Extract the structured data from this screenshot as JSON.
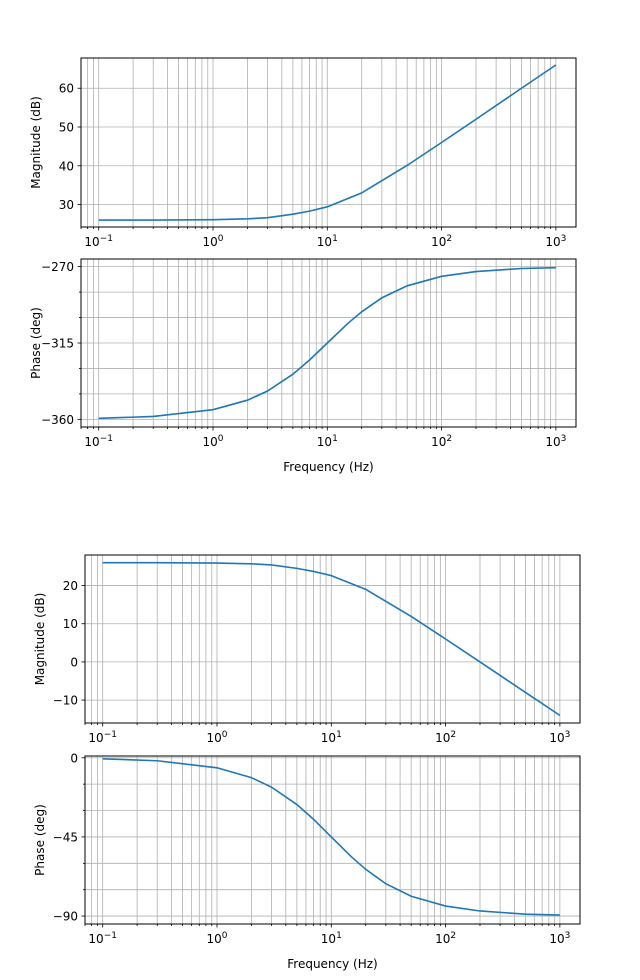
{
  "chart_data": [
    {
      "type": "line",
      "xscale": "log",
      "xlim": [
        0.07,
        1500
      ],
      "xticks": [
        0.1,
        1,
        10,
        100,
        1000
      ],
      "xticklabels": [
        [
          "10",
          "−1"
        ],
        [
          "10",
          "0"
        ],
        [
          "10",
          "1"
        ],
        [
          "10",
          "2"
        ],
        [
          "10",
          "3"
        ]
      ],
      "ylabel": "Magnitude (dB)",
      "xlabel": "",
      "ylim": [
        24.2,
        67.8
      ],
      "yticks": [
        30,
        40,
        50,
        60
      ],
      "yticklabels": [
        "30",
        "40",
        "50",
        "60"
      ],
      "grid": true,
      "series": [
        {
          "name": "magnitude",
          "color": "#1f77b4",
          "x": [
            0.1,
            0.3,
            1,
            2,
            3,
            5,
            7,
            10,
            20,
            50,
            100,
            200,
            500,
            1000
          ],
          "y": [
            26.0,
            26.0,
            26.1,
            26.3,
            26.6,
            27.5,
            28.3,
            29.4,
            33.0,
            40.1,
            46.0,
            52.0,
            60.0,
            66.0
          ]
        }
      ]
    },
    {
      "type": "line",
      "xscale": "log",
      "xlim": [
        0.07,
        1500
      ],
      "xticks": [
        0.1,
        1,
        10,
        100,
        1000
      ],
      "xticklabels": [
        [
          "10",
          "−1"
        ],
        [
          "10",
          "0"
        ],
        [
          "10",
          "1"
        ],
        [
          "10",
          "2"
        ],
        [
          "10",
          "3"
        ]
      ],
      "ylabel": "Phase (deg)",
      "xlabel": "Frequency (Hz)",
      "ylim": [
        -364.5,
        -265.5
      ],
      "yticks": [
        -360,
        -315,
        -270
      ],
      "yticklabels": [
        "−360",
        "−315",
        "−270"
      ],
      "minor_yticks": [
        -345,
        -330,
        -300,
        -285
      ],
      "grid": true,
      "series": [
        {
          "name": "phase",
          "color": "#1f77b4",
          "x": [
            0.1,
            0.3,
            1,
            2,
            3,
            5,
            7,
            10,
            15,
            20,
            30,
            50,
            100,
            200,
            500,
            1000
          ],
          "y": [
            -359.4,
            -358.3,
            -354.3,
            -348.7,
            -343.3,
            -333.4,
            -325.0,
            -315.0,
            -303.7,
            -296.6,
            -288.4,
            -281.3,
            -275.7,
            -272.9,
            -271.1,
            -270.6
          ]
        }
      ]
    },
    {
      "type": "line",
      "xscale": "log",
      "xlim": [
        0.07,
        1500
      ],
      "xticks": [
        0.1,
        1,
        10,
        100,
        1000
      ],
      "xticklabels": [
        [
          "10",
          "−1"
        ],
        [
          "10",
          "0"
        ],
        [
          "10",
          "1"
        ],
        [
          "10",
          "2"
        ],
        [
          "10",
          "3"
        ]
      ],
      "ylabel": "Magnitude (dB)",
      "xlabel": "",
      "ylim": [
        -16.0,
        28.0
      ],
      "yticks": [
        -10,
        0,
        10,
        20
      ],
      "yticklabels": [
        "−10",
        "0",
        "10",
        "20"
      ],
      "grid": true,
      "series": [
        {
          "name": "magnitude",
          "color": "#1f77b4",
          "x": [
            0.1,
            0.3,
            1,
            2,
            3,
            5,
            7,
            10,
            20,
            50,
            100,
            200,
            500,
            1000
          ],
          "y": [
            26.0,
            26.0,
            25.9,
            25.7,
            25.4,
            24.5,
            23.7,
            22.6,
            19.0,
            11.9,
            6.0,
            0.0,
            -8.0,
            -14.0
          ]
        }
      ]
    },
    {
      "type": "line",
      "xscale": "log",
      "xlim": [
        0.07,
        1500
      ],
      "xticks": [
        0.1,
        1,
        10,
        100,
        1000
      ],
      "xticklabels": [
        [
          "10",
          "−1"
        ],
        [
          "10",
          "0"
        ],
        [
          "10",
          "1"
        ],
        [
          "10",
          "2"
        ],
        [
          "10",
          "3"
        ]
      ],
      "ylabel": "Phase (deg)",
      "xlabel": "Frequency (Hz)",
      "ylim": [
        -94.5,
        1.0
      ],
      "yticks": [
        -90,
        -45,
        0
      ],
      "yticklabels": [
        "−90",
        "−45",
        "0"
      ],
      "minor_yticks": [
        -75,
        -60,
        -30,
        -15
      ],
      "grid": true,
      "series": [
        {
          "name": "phase",
          "color": "#1f77b4",
          "x": [
            0.1,
            0.3,
            1,
            2,
            3,
            5,
            7,
            10,
            15,
            20,
            30,
            50,
            100,
            200,
            500,
            1000
          ],
          "y": [
            -0.6,
            -1.7,
            -5.7,
            -11.3,
            -16.7,
            -26.6,
            -35.0,
            -45.0,
            -56.3,
            -63.4,
            -71.6,
            -78.7,
            -84.3,
            -87.1,
            -88.9,
            -89.4
          ]
        }
      ]
    }
  ]
}
